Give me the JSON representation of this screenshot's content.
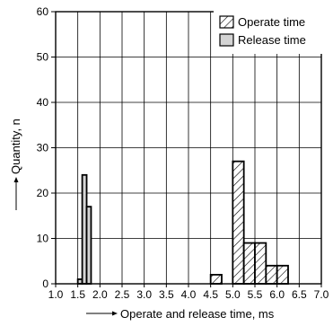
{
  "chart_data": {
    "type": "bar",
    "title": "",
    "xlabel": "Operate and release time, ms",
    "ylabel": "Quantity, n",
    "xlim": [
      1.0,
      7.0
    ],
    "ylim": [
      0,
      60
    ],
    "x_ticks": [
      1.0,
      1.5,
      2.0,
      2.5,
      3.0,
      3.5,
      4.0,
      4.5,
      5.0,
      5.5,
      6.0,
      6.5,
      7.0
    ],
    "x_tick_labels": [
      "1.0",
      "1.5",
      "2.0",
      "2.5",
      "3.0",
      "3.5",
      "4.0",
      "4.5",
      "5.0",
      "5.5",
      "6.0",
      "6.5",
      "7.0"
    ],
    "y_ticks": [
      0,
      10,
      20,
      30,
      40,
      50,
      60
    ],
    "y_tick_labels": [
      "0",
      "10",
      "20",
      "30",
      "40",
      "50",
      "60"
    ],
    "grid": true,
    "legend_position": "top-right",
    "series": [
      {
        "name": "Operate time",
        "fill": "hatched",
        "bins": [
          {
            "x0": 4.5,
            "x1": 4.75,
            "value": 2
          },
          {
            "x0": 4.75,
            "x1": 5.0,
            "value": 0
          },
          {
            "x0": 5.0,
            "x1": 5.25,
            "value": 27
          },
          {
            "x0": 5.25,
            "x1": 5.5,
            "value": 9
          },
          {
            "x0": 5.5,
            "x1": 5.75,
            "value": 9
          },
          {
            "x0": 5.75,
            "x1": 6.0,
            "value": 4
          },
          {
            "x0": 6.0,
            "x1": 6.25,
            "value": 4
          }
        ]
      },
      {
        "name": "Release time",
        "fill": "gray",
        "bins": [
          {
            "x0": 1.5,
            "x1": 1.6,
            "value": 1
          },
          {
            "x0": 1.6,
            "x1": 1.7,
            "value": 24
          },
          {
            "x0": 1.7,
            "x1": 1.8,
            "value": 17
          }
        ]
      }
    ]
  },
  "colors": {
    "release_fill": "#d4d4d4",
    "line": "#000000",
    "background": "#ffffff"
  }
}
